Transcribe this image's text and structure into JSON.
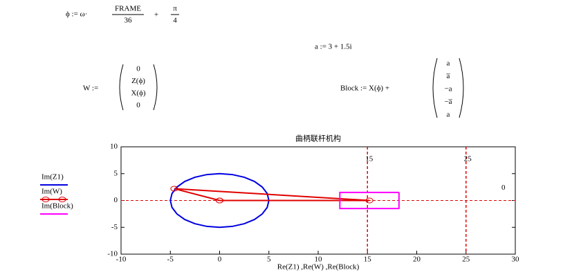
{
  "formulas": {
    "phi": {
      "lhs": "ϕ := ω·",
      "frac1_num": "FRAME",
      "frac1_den": "36",
      "op": "+",
      "frac2_num": "π",
      "frac2_den": "4"
    },
    "a": "a := 3 + 1.5i",
    "W": {
      "lhs": "W :=",
      "entries": [
        "0",
        "Z(ϕ)",
        "X(ϕ)",
        "0"
      ]
    },
    "Block": {
      "lhs": "Block := X(ϕ) +",
      "entries": [
        "a",
        "a̅",
        "−a",
        "−a̅",
        "a"
      ]
    }
  },
  "chart_data": {
    "type": "line",
    "title": "曲柄联杆机构",
    "x_label": "Re(Z1) ,Re(W) ,Re(Block)",
    "xlim": [
      -10,
      30
    ],
    "ylim": [
      -10,
      10
    ],
    "xticks": [
      -10,
      -5,
      0,
      5,
      10,
      15,
      20,
      25,
      30
    ],
    "yticks": [
      -10,
      -5,
      0,
      5,
      10
    ],
    "legend": "left",
    "markers": {
      "x": [
        15,
        25
      ],
      "y": [
        0
      ],
      "color": "#e00000"
    },
    "series": [
      {
        "name": "Im(Z1)",
        "color": "#0000e0",
        "x": [
          5,
          4.83,
          4.33,
          3.54,
          2.5,
          1.29,
          0,
          -1.29,
          -2.5,
          -3.54,
          -4.33,
          -4.83,
          -5,
          -4.83,
          -4.33,
          -3.54,
          -2.5,
          -1.29,
          0,
          1.29,
          2.5,
          3.54,
          4.33,
          4.83,
          5
        ],
        "values": [
          0,
          1.29,
          2.5,
          3.54,
          4.33,
          4.83,
          5,
          4.83,
          4.33,
          3.54,
          2.5,
          1.29,
          0,
          -1.29,
          -2.5,
          -3.54,
          -4.33,
          -4.83,
          -5,
          -4.83,
          -4.33,
          -3.54,
          -2.5,
          -1.29,
          0
        ]
      },
      {
        "name": "Im(W)",
        "color": "#e00000",
        "point_markers": true,
        "x": [
          0,
          -4.6,
          15.2,
          0
        ],
        "values": [
          0,
          2.2,
          0,
          0
        ]
      },
      {
        "name": "Im(Block)",
        "color": "#ff00ff",
        "x": [
          18.2,
          18.2,
          12.2,
          12.2,
          18.2
        ],
        "values": [
          1.5,
          -1.5,
          -1.5,
          1.5,
          1.5
        ]
      }
    ]
  }
}
